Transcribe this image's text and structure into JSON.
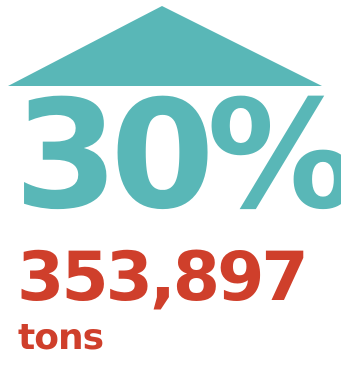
{
  "colors": {
    "teal": "#59B7B7",
    "red": "#CF3F2B"
  },
  "stat": {
    "percent": "30%",
    "amount": "353,897",
    "unit": "tons"
  },
  "icons": {
    "roof": "house-roof-icon"
  }
}
